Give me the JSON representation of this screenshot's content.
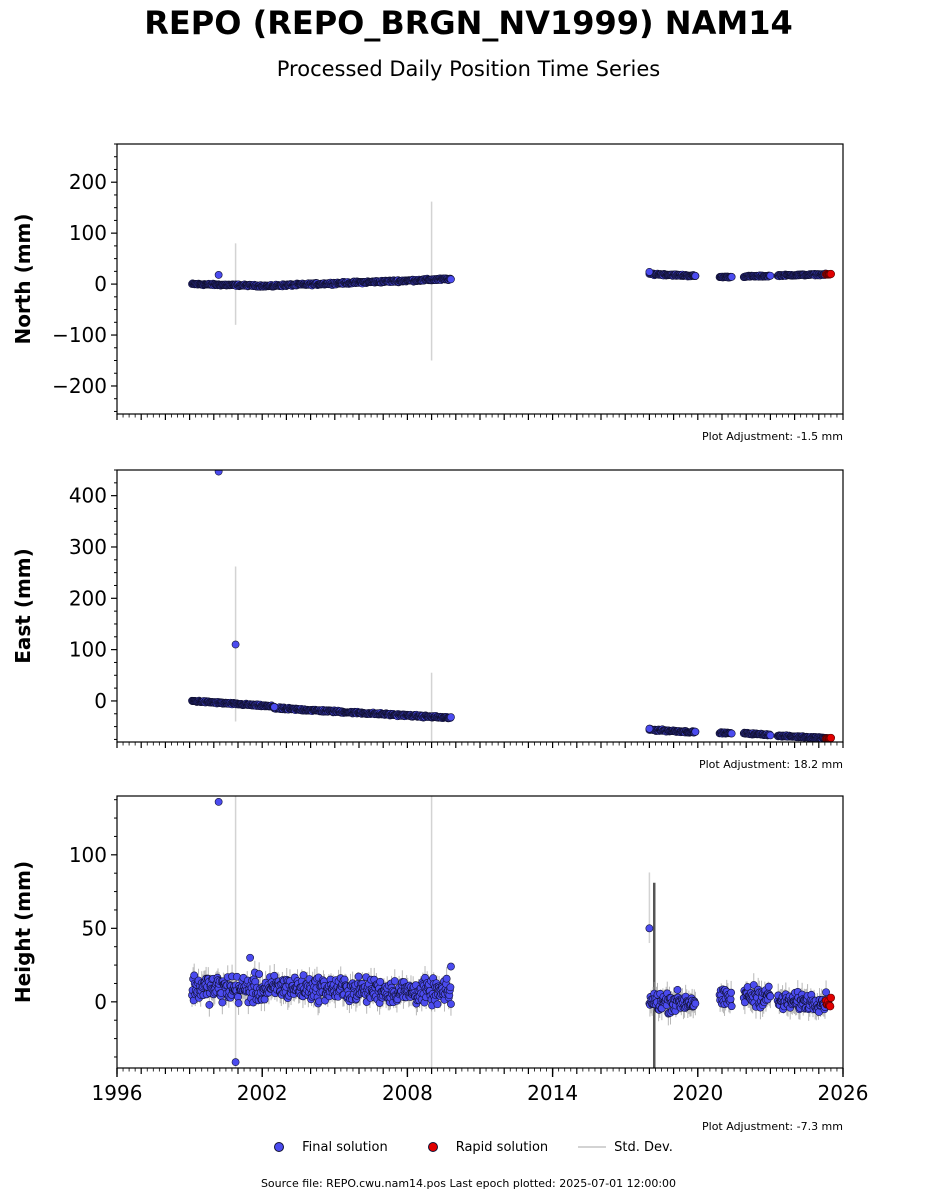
{
  "title": "REPO (REPO_BRGN_NV1999) NAM14",
  "subtitle": "Processed Daily Position Time Series",
  "source_line": "Source file: REPO.cwu.nam14.pos  Last epoch plotted: 2025-07-01 12:00:00",
  "colors": {
    "final": "#4b4bef",
    "rapid": "#e00000",
    "stddev": "#d3d3d3",
    "edge": "#111133"
  },
  "legend": {
    "final": "Final solution",
    "rapid": "Rapid solution",
    "stddev": "Std. Dev."
  },
  "chart_data": [
    {
      "type": "scatter",
      "panel": "north",
      "ylabel": "North (mm)",
      "xlim": [
        1996,
        2026
      ],
      "ylim": [
        -255,
        275
      ],
      "yticks": [
        -200,
        -100,
        0,
        100,
        200
      ],
      "adjustment": "Plot Adjustment: -1.5 mm",
      "segments": [
        {
          "x0": 1999.1,
          "x1": 2002.5,
          "y0": 0,
          "y1": -4,
          "noise": 1.5
        },
        {
          "x0": 2002.5,
          "x1": 2009.8,
          "y0": -3,
          "y1": 10,
          "noise": 1.8
        },
        {
          "x0": 2018.0,
          "x1": 2019.9,
          "y0": 20,
          "y1": 16,
          "noise": 1.5
        },
        {
          "x0": 2020.9,
          "x1": 2021.4,
          "y0": 14,
          "y1": 14,
          "noise": 1.0
        },
        {
          "x0": 2021.9,
          "x1": 2023.0,
          "y0": 15,
          "y1": 16,
          "noise": 1.2
        },
        {
          "x0": 2023.3,
          "x1": 2025.3,
          "y0": 17,
          "y1": 19,
          "noise": 1.2
        }
      ],
      "rapid": {
        "x0": 2025.3,
        "x1": 2025.5,
        "y": 19,
        "noise": 1.0
      },
      "outliers": [
        [
          2000.2,
          18
        ],
        [
          2018.0,
          24
        ],
        [
          2019.9,
          16
        ]
      ],
      "errorbars": [
        [
          2000.9,
          -80,
          80
        ],
        [
          2009.0,
          -150,
          162
        ]
      ]
    },
    {
      "type": "scatter",
      "panel": "east",
      "ylabel": "East (mm)",
      "xlim": [
        1996,
        2026
      ],
      "ylim": [
        -80,
        450
      ],
      "yticks": [
        0,
        100,
        200,
        300,
        400
      ],
      "adjustment": "Plot Adjustment: 18.2 mm",
      "segments": [
        {
          "x0": 1999.1,
          "x1": 2002.5,
          "y0": 0,
          "y1": -11,
          "noise": 1.5
        },
        {
          "x0": 2002.5,
          "x1": 2009.8,
          "y0": -14,
          "y1": -33,
          "noise": 1.8
        },
        {
          "x0": 2018.0,
          "x1": 2019.9,
          "y0": -56,
          "y1": -61,
          "noise": 1.5
        },
        {
          "x0": 2020.9,
          "x1": 2021.4,
          "y0": -62,
          "y1": -63,
          "noise": 1.0
        },
        {
          "x0": 2021.9,
          "x1": 2023.0,
          "y0": -63,
          "y1": -66,
          "noise": 1.2
        },
        {
          "x0": 2023.3,
          "x1": 2025.3,
          "y0": -68,
          "y1": -72,
          "noise": 1.2
        }
      ],
      "rapid": {
        "x0": 2025.3,
        "x1": 2025.5,
        "y": -73,
        "noise": 1.0
      },
      "outliers": [
        [
          2000.2,
          447
        ],
        [
          2000.9,
          110
        ],
        [
          2002.5,
          -12
        ],
        [
          2018.0,
          -54
        ],
        [
          2019.9,
          -60
        ]
      ],
      "errorbars": [
        [
          2000.9,
          -40,
          262
        ],
        [
          2009.0,
          -78,
          55
        ]
      ]
    },
    {
      "type": "scatter",
      "panel": "height",
      "ylabel": "Height (mm)",
      "xlim": [
        1996,
        2026
      ],
      "ylim": [
        -45,
        140
      ],
      "yticks": [
        0,
        50,
        100
      ],
      "xticks": [
        1996,
        2002,
        2008,
        2014,
        2020,
        2026
      ],
      "adjustment": "Plot Adjustment: -7.3 mm",
      "segments": [
        {
          "x0": 1999.1,
          "x1": 2002.5,
          "y0": 10,
          "y1": 8,
          "noise": 8
        },
        {
          "x0": 2002.5,
          "x1": 2009.8,
          "y0": 10,
          "y1": 6,
          "noise": 7
        },
        {
          "x0": 2018.0,
          "x1": 2019.9,
          "y0": 0,
          "y1": 0,
          "noise": 6
        },
        {
          "x0": 2020.9,
          "x1": 2021.4,
          "y0": 2,
          "y1": 2,
          "noise": 5
        },
        {
          "x0": 2021.9,
          "x1": 2023.0,
          "y0": 4,
          "y1": 4,
          "noise": 6
        },
        {
          "x0": 2023.3,
          "x1": 2025.3,
          "y0": 0,
          "y1": 0,
          "noise": 5
        }
      ],
      "rapid": {
        "x0": 2025.3,
        "x1": 2025.5,
        "y": 0,
        "noise": 3
      },
      "outliers": [
        [
          2000.2,
          136
        ],
        [
          2000.9,
          -41
        ],
        [
          2001.5,
          30
        ],
        [
          2018.0,
          50
        ],
        [
          2009.8,
          24
        ]
      ],
      "errorbars": [
        [
          2000.9,
          -45,
          140
        ],
        [
          2009.0,
          -45,
          140
        ],
        [
          2018.0,
          40,
          88
        ]
      ],
      "dark_errorbars": [
        [
          2018.2,
          -45,
          81
        ]
      ]
    }
  ]
}
